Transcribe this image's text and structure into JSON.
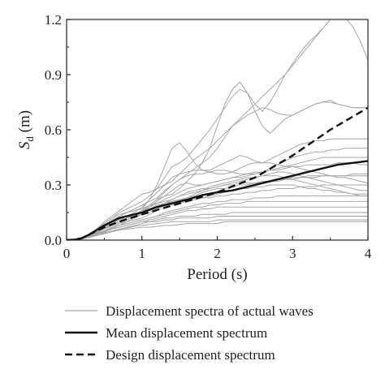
{
  "chart_data": {
    "type": "line",
    "title": "",
    "xlabel": "Period (s)",
    "ylabel_main": "S",
    "ylabel_sub": "d",
    "ylabel_unit": " (m)",
    "xlim": [
      0,
      4
    ],
    "ylim": [
      0,
      1.2
    ],
    "x_ticks": [
      0,
      1,
      2,
      3,
      4
    ],
    "x_tick_labels": [
      "0",
      "1",
      "2",
      "3",
      "4"
    ],
    "y_ticks": [
      0,
      0.3,
      0.6,
      0.9,
      1.2
    ],
    "y_tick_labels": [
      "0.0",
      "0.3",
      "0.6",
      "0.9",
      "1.2"
    ],
    "grid": false,
    "legend_position": "bottom",
    "legend": [
      {
        "label": "Displacement spectra of actual waves",
        "style": "thin-gray"
      },
      {
        "label": "Mean displacement spectrum",
        "style": "solid-black"
      },
      {
        "label": "Design displacement spectrum",
        "style": "dashed-black"
      }
    ],
    "colors": {
      "actual": "#a6a6a6",
      "mean": "#111111",
      "design": "#111111"
    },
    "mean_series": {
      "name": "Mean displacement spectrum",
      "x": [
        0,
        0.1,
        0.2,
        0.3,
        0.4,
        0.5,
        0.6,
        0.7,
        0.8,
        1.0,
        1.2,
        1.4,
        1.6,
        1.8,
        2.0,
        2.2,
        2.4,
        2.6,
        2.8,
        3.0,
        3.2,
        3.4,
        3.6,
        3.8,
        4.0
      ],
      "y": [
        0,
        0.002,
        0.01,
        0.03,
        0.055,
        0.08,
        0.1,
        0.12,
        0.13,
        0.15,
        0.18,
        0.2,
        0.22,
        0.245,
        0.26,
        0.27,
        0.29,
        0.31,
        0.33,
        0.35,
        0.37,
        0.39,
        0.41,
        0.42,
        0.43
      ]
    },
    "design_series": {
      "name": "Design displacement spectrum",
      "x": [
        0,
        0.1,
        0.2,
        0.3,
        0.5,
        0.7,
        1.0,
        1.5,
        2.0,
        2.5,
        3.0,
        3.5,
        4.0
      ],
      "y": [
        0,
        0.002,
        0.01,
        0.03,
        0.07,
        0.1,
        0.14,
        0.2,
        0.26,
        0.34,
        0.46,
        0.6,
        0.72
      ]
    },
    "actual_x": [
      0,
      0.1,
      0.2,
      0.3,
      0.4,
      0.5,
      0.6,
      0.7,
      0.8,
      0.9,
      1.0,
      1.1,
      1.2,
      1.3,
      1.4,
      1.5,
      1.6,
      1.7,
      1.8,
      1.9,
      2.0,
      2.1,
      2.2,
      2.3,
      2.4,
      2.5,
      2.6,
      2.7,
      2.8,
      2.9,
      3.0,
      3.1,
      3.2,
      3.3,
      3.4,
      3.5,
      3.6,
      3.7,
      3.8,
      3.9,
      4.0
    ],
    "actual_series": [
      {
        "y": [
          0,
          0.003,
          0.01,
          0.03,
          0.06,
          0.09,
          0.12,
          0.15,
          0.17,
          0.19,
          0.21,
          0.24,
          0.28,
          0.34,
          0.4,
          0.42,
          0.45,
          0.5,
          0.55,
          0.6,
          0.66,
          0.72,
          0.78,
          0.82,
          0.8,
          0.74,
          0.7,
          0.75,
          0.82,
          0.9,
          0.96,
          1.02,
          1.07,
          1.11,
          1.15,
          1.2,
          1.22,
          1.23,
          1.22,
          1.21,
          1.2
        ]
      },
      {
        "y": [
          0,
          0.003,
          0.01,
          0.03,
          0.05,
          0.08,
          0.1,
          0.13,
          0.15,
          0.17,
          0.19,
          0.21,
          0.23,
          0.27,
          0.3,
          0.33,
          0.36,
          0.39,
          0.42,
          0.45,
          0.5,
          0.56,
          0.62,
          0.66,
          0.7,
          0.74,
          0.78,
          0.82,
          0.86,
          0.9,
          0.95,
          1.0,
          1.05,
          1.1,
          1.15,
          1.2,
          1.22,
          1.21,
          1.16,
          1.08,
          0.98
        ]
      },
      {
        "y": [
          0,
          0.003,
          0.01,
          0.03,
          0.06,
          0.1,
          0.13,
          0.16,
          0.19,
          0.22,
          0.25,
          0.26,
          0.28,
          0.3,
          0.32,
          0.36,
          0.4,
          0.44,
          0.47,
          0.5,
          0.54,
          0.58,
          0.62,
          0.65,
          0.68,
          0.7,
          0.72,
          0.71,
          0.69,
          0.68,
          0.68,
          0.7,
          0.72,
          0.74,
          0.75,
          0.75,
          0.74,
          0.73,
          0.72,
          0.72,
          0.72
        ]
      },
      {
        "y": [
          0,
          0.003,
          0.01,
          0.03,
          0.06,
          0.09,
          0.12,
          0.14,
          0.15,
          0.16,
          0.17,
          0.19,
          0.22,
          0.24,
          0.25,
          0.28,
          0.32,
          0.36,
          0.42,
          0.5,
          0.62,
          0.74,
          0.82,
          0.86,
          0.8,
          0.7,
          0.62,
          0.58,
          0.62,
          0.66,
          0.68,
          0.7,
          0.72,
          0.74,
          0.75,
          0.76,
          0.74,
          0.73,
          0.72,
          0.72,
          0.72
        ]
      },
      {
        "y": [
          0,
          0.003,
          0.01,
          0.03,
          0.05,
          0.08,
          0.11,
          0.13,
          0.15,
          0.16,
          0.17,
          0.22,
          0.3,
          0.4,
          0.5,
          0.53,
          0.48,
          0.42,
          0.38,
          0.38,
          0.4,
          0.42,
          0.44,
          0.46,
          0.45,
          0.43,
          0.42,
          0.44,
          0.46,
          0.48,
          0.5,
          0.52,
          0.53,
          0.54,
          0.54,
          0.55,
          0.55,
          0.55,
          0.55,
          0.55,
          0.55
        ]
      },
      {
        "y": [
          0,
          0.002,
          0.01,
          0.025,
          0.05,
          0.07,
          0.09,
          0.11,
          0.12,
          0.14,
          0.16,
          0.19,
          0.22,
          0.26,
          0.3,
          0.33,
          0.35,
          0.36,
          0.36,
          0.37,
          0.38,
          0.38,
          0.37,
          0.36,
          0.36,
          0.36,
          0.37,
          0.39,
          0.41,
          0.43,
          0.45,
          0.46,
          0.47,
          0.48,
          0.48,
          0.49,
          0.49,
          0.5,
          0.5,
          0.5,
          0.5
        ]
      },
      {
        "y": [
          0,
          0.002,
          0.01,
          0.025,
          0.045,
          0.07,
          0.09,
          0.11,
          0.13,
          0.15,
          0.18,
          0.22,
          0.26,
          0.3,
          0.34,
          0.36,
          0.37,
          0.38,
          0.38,
          0.37,
          0.36,
          0.36,
          0.37,
          0.39,
          0.41,
          0.42,
          0.42,
          0.42,
          0.41,
          0.4,
          0.4,
          0.39,
          0.38,
          0.37,
          0.36,
          0.35,
          0.34,
          0.34,
          0.33,
          0.32,
          0.31
        ]
      },
      {
        "y": [
          0,
          0.002,
          0.01,
          0.025,
          0.045,
          0.065,
          0.085,
          0.1,
          0.11,
          0.13,
          0.15,
          0.18,
          0.21,
          0.24,
          0.27,
          0.3,
          0.31,
          0.3,
          0.3,
          0.31,
          0.32,
          0.33,
          0.34,
          0.34,
          0.35,
          0.36,
          0.37,
          0.38,
          0.38,
          0.39,
          0.4,
          0.4,
          0.41,
          0.41,
          0.41,
          0.41,
          0.42,
          0.42,
          0.42,
          0.41,
          0.41
        ]
      },
      {
        "y": [
          0,
          0.002,
          0.008,
          0.02,
          0.04,
          0.06,
          0.08,
          0.1,
          0.12,
          0.14,
          0.16,
          0.19,
          0.2,
          0.21,
          0.22,
          0.24,
          0.26,
          0.27,
          0.28,
          0.28,
          0.29,
          0.3,
          0.31,
          0.32,
          0.33,
          0.34,
          0.35,
          0.36,
          0.37,
          0.37,
          0.36,
          0.35,
          0.34,
          0.33,
          0.32,
          0.31,
          0.3,
          0.29,
          0.28,
          0.27,
          0.27
        ]
      },
      {
        "y": [
          0,
          0.002,
          0.008,
          0.02,
          0.04,
          0.06,
          0.08,
          0.1,
          0.12,
          0.14,
          0.16,
          0.17,
          0.19,
          0.2,
          0.21,
          0.22,
          0.23,
          0.25,
          0.27,
          0.29,
          0.3,
          0.31,
          0.32,
          0.33,
          0.34,
          0.34,
          0.35,
          0.35,
          0.35,
          0.34,
          0.33,
          0.32,
          0.31,
          0.3,
          0.29,
          0.28,
          0.27,
          0.26,
          0.25,
          0.24,
          0.24
        ]
      },
      {
        "y": [
          0,
          0.002,
          0.008,
          0.02,
          0.035,
          0.05,
          0.07,
          0.09,
          0.11,
          0.13,
          0.15,
          0.17,
          0.18,
          0.2,
          0.22,
          0.24,
          0.25,
          0.26,
          0.27,
          0.28,
          0.29,
          0.3,
          0.3,
          0.31,
          0.31,
          0.31,
          0.31,
          0.32,
          0.32,
          0.33,
          0.33,
          0.34,
          0.34,
          0.34,
          0.35,
          0.35,
          0.35,
          0.35,
          0.36,
          0.36,
          0.36
        ]
      },
      {
        "y": [
          0,
          0.002,
          0.008,
          0.02,
          0.035,
          0.05,
          0.07,
          0.09,
          0.1,
          0.12,
          0.14,
          0.16,
          0.18,
          0.2,
          0.21,
          0.22,
          0.22,
          0.22,
          0.23,
          0.24,
          0.25,
          0.26,
          0.27,
          0.28,
          0.28,
          0.29,
          0.29,
          0.3,
          0.3,
          0.3,
          0.3,
          0.29,
          0.28,
          0.28,
          0.27,
          0.27,
          0.26,
          0.26,
          0.25,
          0.25,
          0.25
        ]
      },
      {
        "y": [
          0,
          0.002,
          0.008,
          0.02,
          0.035,
          0.05,
          0.065,
          0.08,
          0.1,
          0.11,
          0.12,
          0.14,
          0.16,
          0.18,
          0.19,
          0.2,
          0.21,
          0.22,
          0.23,
          0.23,
          0.24,
          0.24,
          0.25,
          0.25,
          0.26,
          0.26,
          0.27,
          0.27,
          0.28,
          0.28,
          0.28,
          0.29,
          0.29,
          0.29,
          0.3,
          0.3,
          0.3,
          0.3,
          0.3,
          0.3,
          0.3
        ]
      },
      {
        "y": [
          0,
          0.002,
          0.008,
          0.02,
          0.035,
          0.05,
          0.065,
          0.08,
          0.09,
          0.1,
          0.11,
          0.12,
          0.13,
          0.15,
          0.16,
          0.17,
          0.18,
          0.19,
          0.2,
          0.2,
          0.21,
          0.21,
          0.22,
          0.22,
          0.22,
          0.23,
          0.23,
          0.23,
          0.24,
          0.24,
          0.24,
          0.24,
          0.24,
          0.24,
          0.24,
          0.24,
          0.24,
          0.24,
          0.24,
          0.24,
          0.24
        ]
      },
      {
        "y": [
          0,
          0.002,
          0.007,
          0.018,
          0.03,
          0.045,
          0.06,
          0.07,
          0.08,
          0.09,
          0.1,
          0.11,
          0.12,
          0.13,
          0.14,
          0.15,
          0.16,
          0.16,
          0.17,
          0.17,
          0.18,
          0.18,
          0.18,
          0.18,
          0.18,
          0.18,
          0.18,
          0.18,
          0.18,
          0.18,
          0.18,
          0.18,
          0.18,
          0.18,
          0.18,
          0.18,
          0.18,
          0.18,
          0.18,
          0.18,
          0.18
        ]
      },
      {
        "y": [
          0,
          0.002,
          0.007,
          0.018,
          0.03,
          0.045,
          0.06,
          0.07,
          0.08,
          0.09,
          0.1,
          0.1,
          0.11,
          0.12,
          0.12,
          0.13,
          0.13,
          0.13,
          0.14,
          0.14,
          0.14,
          0.14,
          0.15,
          0.15,
          0.15,
          0.15,
          0.15,
          0.15,
          0.15,
          0.15,
          0.15,
          0.15,
          0.15,
          0.15,
          0.15,
          0.15,
          0.15,
          0.15,
          0.15,
          0.15,
          0.15
        ]
      },
      {
        "y": [
          0,
          0.002,
          0.007,
          0.015,
          0.025,
          0.04,
          0.05,
          0.06,
          0.07,
          0.08,
          0.09,
          0.1,
          0.1,
          0.11,
          0.11,
          0.12,
          0.12,
          0.12,
          0.12,
          0.12,
          0.13,
          0.13,
          0.13,
          0.13,
          0.13,
          0.13,
          0.13,
          0.13,
          0.13,
          0.13,
          0.13,
          0.13,
          0.13,
          0.13,
          0.13,
          0.13,
          0.13,
          0.13,
          0.13,
          0.13,
          0.13
        ]
      },
      {
        "y": [
          0,
          0.002,
          0.007,
          0.015,
          0.025,
          0.035,
          0.045,
          0.055,
          0.065,
          0.075,
          0.08,
          0.085,
          0.09,
          0.095,
          0.1,
          0.1,
          0.1,
          0.1,
          0.1,
          0.1,
          0.11,
          0.11,
          0.11,
          0.11,
          0.11,
          0.11,
          0.11,
          0.11,
          0.11,
          0.11,
          0.11,
          0.11,
          0.11,
          0.11,
          0.11,
          0.11,
          0.11,
          0.11,
          0.11,
          0.11,
          0.11
        ]
      },
      {
        "y": [
          0,
          0.002,
          0.008,
          0.02,
          0.04,
          0.06,
          0.08,
          0.1,
          0.12,
          0.14,
          0.16,
          0.18,
          0.2,
          0.22,
          0.24,
          0.26,
          0.28,
          0.29,
          0.3,
          0.31,
          0.32,
          0.33,
          0.34,
          0.35,
          0.36,
          0.37,
          0.37,
          0.38,
          0.39,
          0.4,
          0.41,
          0.42,
          0.43,
          0.44,
          0.45,
          0.45,
          0.45,
          0.45,
          0.45,
          0.45,
          0.45
        ]
      },
      {
        "y": [
          0,
          0.002,
          0.008,
          0.02,
          0.04,
          0.06,
          0.08,
          0.1,
          0.12,
          0.13,
          0.14,
          0.15,
          0.17,
          0.19,
          0.21,
          0.22,
          0.23,
          0.24,
          0.26,
          0.27,
          0.28,
          0.28,
          0.29,
          0.3,
          0.3,
          0.31,
          0.32,
          0.32,
          0.33,
          0.33,
          0.34,
          0.34,
          0.35,
          0.35,
          0.35,
          0.35,
          0.35,
          0.35,
          0.35,
          0.35,
          0.35
        ]
      },
      {
        "y": [
          0,
          0.002,
          0.008,
          0.02,
          0.035,
          0.05,
          0.065,
          0.08,
          0.09,
          0.1,
          0.11,
          0.12,
          0.13,
          0.14,
          0.15,
          0.16,
          0.17,
          0.18,
          0.18,
          0.19,
          0.19,
          0.2,
          0.2,
          0.2,
          0.21,
          0.21,
          0.21,
          0.21,
          0.21,
          0.21,
          0.21,
          0.21,
          0.21,
          0.21,
          0.21,
          0.21,
          0.21,
          0.21,
          0.21,
          0.21,
          0.21
        ]
      },
      {
        "y": [
          0,
          0.002,
          0.007,
          0.015,
          0.025,
          0.035,
          0.045,
          0.055,
          0.06,
          0.065,
          0.07,
          0.07,
          0.075,
          0.08,
          0.08,
          0.085,
          0.09,
          0.09,
          0.09,
          0.09,
          0.09,
          0.1,
          0.1,
          0.1,
          0.1,
          0.1,
          0.1,
          0.1,
          0.1,
          0.1,
          0.1,
          0.1,
          0.1,
          0.1,
          0.1,
          0.1,
          0.1,
          0.1,
          0.1,
          0.1,
          0.1
        ]
      }
    ]
  }
}
